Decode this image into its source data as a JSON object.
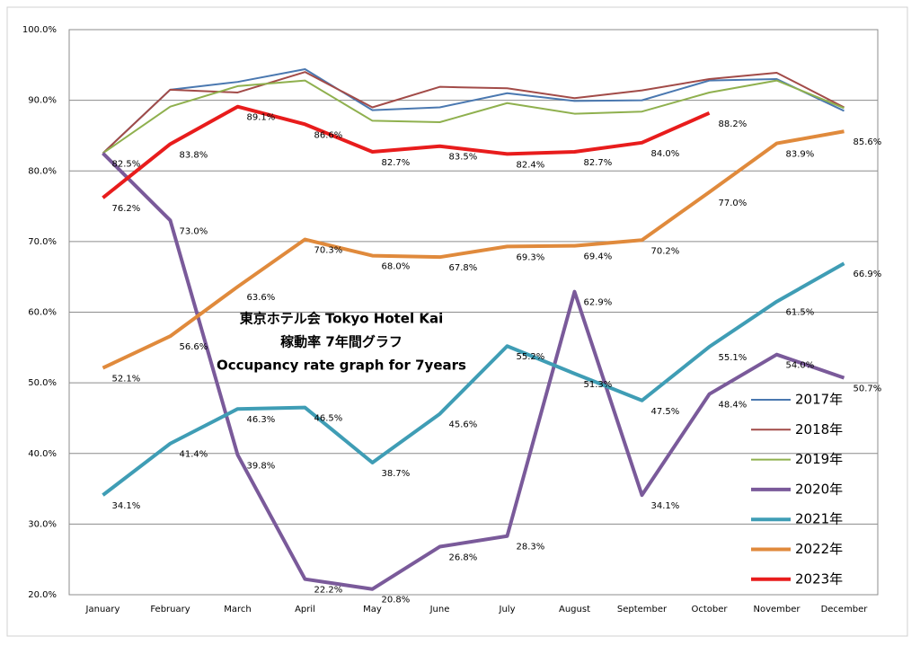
{
  "chart_data": {
    "type": "line",
    "title": [
      "東京ホテル会 Tokyo Hotel Kai",
      "稼動率 7年間グラフ",
      "Occupancy rate graph for 7years"
    ],
    "categories": [
      "January",
      "February",
      "March",
      "April",
      "May",
      "June",
      "July",
      "August",
      "September",
      "October",
      "November",
      "December"
    ],
    "ylim": [
      20,
      100
    ],
    "yticks": [
      {
        "value": 20,
        "label": "20.0%"
      },
      {
        "value": 30,
        "label": "30.0%"
      },
      {
        "value": 40,
        "label": "40.0%"
      },
      {
        "value": 50,
        "label": "50.0%"
      },
      {
        "value": 60,
        "label": "60.0%"
      },
      {
        "value": 70,
        "label": "70.0%"
      },
      {
        "value": 80,
        "label": "80.0%"
      },
      {
        "value": 90,
        "label": "90.0%"
      },
      {
        "value": 100,
        "label": "100.0%"
      }
    ],
    "grid": true,
    "series": [
      {
        "name": "2017年",
        "color": "#4a78b0",
        "line_width": 2,
        "values": [
          82.5,
          91.5,
          92.6,
          94.4,
          88.6,
          89.0,
          91.0,
          89.9,
          90.0,
          92.8,
          93.0,
          88.5
        ]
      },
      {
        "name": "2018年",
        "color": "#a24b48",
        "line_width": 2,
        "values": [
          82.5,
          91.5,
          91.1,
          94.0,
          89.0,
          91.9,
          91.7,
          90.3,
          91.4,
          93.0,
          93.9,
          89.0
        ]
      },
      {
        "name": "2019年",
        "color": "#8fb04e",
        "line_width": 2,
        "values": [
          82.5,
          89.1,
          92.0,
          92.8,
          87.1,
          86.9,
          89.6,
          88.1,
          88.4,
          91.1,
          92.8,
          88.9
        ]
      },
      {
        "name": "2020年",
        "color": "#7a5a9a",
        "line_width": 4,
        "values": [
          82.5,
          73.0,
          39.8,
          22.2,
          20.8,
          26.8,
          28.3,
          62.9,
          34.1,
          48.4,
          54.0,
          50.7
        ],
        "value_labels": [
          "82.5%",
          "73.0%",
          "39.8%",
          "22.2%",
          "20.8%",
          "26.8%",
          "28.3%",
          "62.9%",
          "34.1%",
          "48.4%",
          "54.0%",
          "50.7%"
        ]
      },
      {
        "name": "2021年",
        "color": "#3f9db5",
        "line_width": 4,
        "values": [
          34.1,
          41.4,
          46.3,
          46.5,
          38.7,
          45.6,
          55.2,
          51.3,
          47.5,
          55.1,
          61.5,
          66.9
        ],
        "value_labels": [
          "34.1%",
          "41.4%",
          "46.3%",
          "46.5%",
          "38.7%",
          "45.6%",
          "55.2%",
          "51.3%",
          "47.5%",
          "55.1%",
          "61.5%",
          "66.9%"
        ]
      },
      {
        "name": "2022年",
        "color": "#e08a3c",
        "line_width": 4,
        "values": [
          52.1,
          56.6,
          63.6,
          70.3,
          68.0,
          67.8,
          69.3,
          69.4,
          70.2,
          77.0,
          83.9,
          85.6
        ],
        "value_labels": [
          "52.1%",
          "56.6%",
          "63.6%",
          "70.3%",
          "68.0%",
          "67.8%",
          "69.3%",
          "69.4%",
          "70.2%",
          "77.0%",
          "83.9%",
          "85.6%"
        ]
      },
      {
        "name": "2023年",
        "color": "#e81c1c",
        "line_width": 4,
        "values": [
          76.2,
          83.8,
          89.1,
          86.6,
          82.7,
          83.5,
          82.4,
          82.7,
          84.0,
          88.2,
          null,
          null
        ],
        "value_labels": [
          "76.2%",
          "83.8%",
          "89.1%",
          "86.6%",
          "82.7%",
          "83.5%",
          "82.4%",
          "82.7%",
          "84.0%",
          "88.2%",
          null,
          null
        ]
      }
    ]
  }
}
